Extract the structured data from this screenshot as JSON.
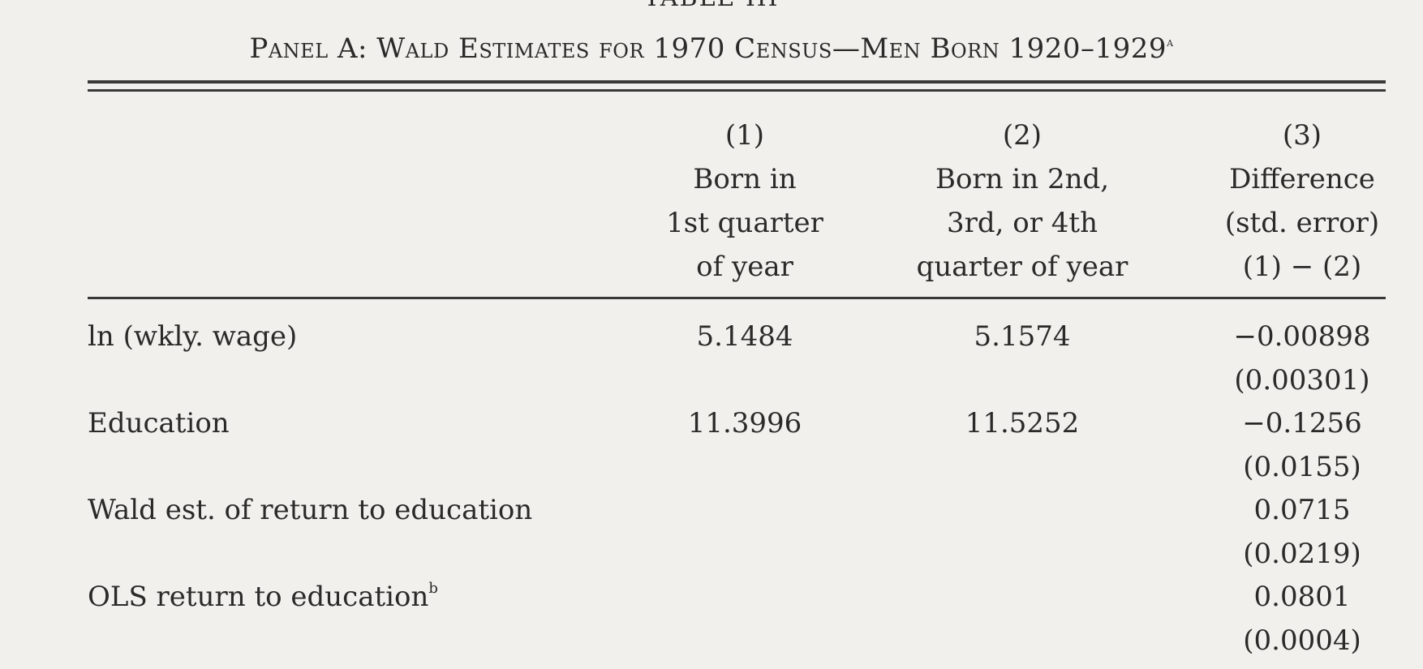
{
  "table_label": "TABLE III",
  "panel_title": "Panel A: Wald Estimates for 1970 Census—Men Born 1920–1929",
  "panel_title_note": "a",
  "columns": [
    {
      "number": "(1)",
      "lines": [
        "Born in",
        "1st quarter",
        "of year"
      ]
    },
    {
      "number": "(2)",
      "lines": [
        "Born in 2nd,",
        "3rd, or 4th",
        "quarter of year"
      ]
    },
    {
      "number": "(3)",
      "lines": [
        "Difference",
        "(std. error)",
        "(1) − (2)"
      ]
    }
  ],
  "rows": [
    {
      "label": "ln (wkly. wage)",
      "note": "",
      "c1": "5.1484",
      "c2": "5.1574",
      "c3": "−0.00898",
      "c3_se": "(0.00301)"
    },
    {
      "label": "Education",
      "note": "",
      "c1": "11.3996",
      "c2": "11.5252",
      "c3": "−0.1256",
      "c3_se": "(0.0155)"
    },
    {
      "label": "Wald est. of return to education",
      "note": "",
      "c1": "",
      "c2": "",
      "c3": "0.0715",
      "c3_se": "(0.0219)"
    },
    {
      "label": "OLS return to education",
      "note": "b",
      "c1": "",
      "c2": "",
      "c3": "0.0801",
      "c3_se": "(0.0004)"
    }
  ]
}
